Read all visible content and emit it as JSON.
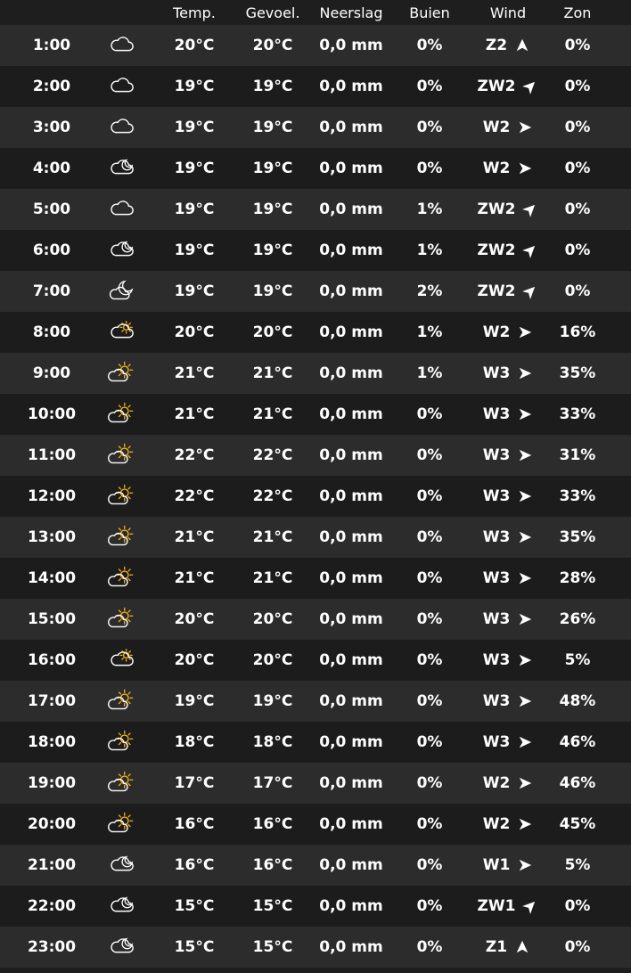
{
  "colors": {
    "background": "#1e1e1e",
    "row_odd": "#2c2c2c",
    "row_even": "#1c1c1c",
    "text": "#ffffff",
    "sun": "#f5b21a"
  },
  "headers": {
    "temp": "Temp.",
    "feel": "Gevoel.",
    "rain": "Neerslag",
    "buien": "Buien",
    "wind": "Wind",
    "zon": "Zon"
  },
  "rows": [
    {
      "time": "1:00",
      "icon": "cloud-icon",
      "temp": "20°C",
      "feel": "20°C",
      "rain": "0,0 mm",
      "buien": "0%",
      "wind": "Z2",
      "dir": "S",
      "zon": "0%"
    },
    {
      "time": "2:00",
      "icon": "cloud-icon",
      "temp": "19°C",
      "feel": "19°C",
      "rain": "0,0 mm",
      "buien": "0%",
      "wind": "ZW2",
      "dir": "SW",
      "zon": "0%"
    },
    {
      "time": "3:00",
      "icon": "cloud-icon",
      "temp": "19°C",
      "feel": "19°C",
      "rain": "0,0 mm",
      "buien": "0%",
      "wind": "W2",
      "dir": "W",
      "zon": "0%"
    },
    {
      "time": "4:00",
      "icon": "cloud-moon-icon",
      "temp": "19°C",
      "feel": "19°C",
      "rain": "0,0 mm",
      "buien": "0%",
      "wind": "W2",
      "dir": "W",
      "zon": "0%"
    },
    {
      "time": "5:00",
      "icon": "cloud-icon",
      "temp": "19°C",
      "feel": "19°C",
      "rain": "0,0 mm",
      "buien": "1%",
      "wind": "ZW2",
      "dir": "SW",
      "zon": "0%"
    },
    {
      "time": "6:00",
      "icon": "cloud-moon-icon",
      "temp": "19°C",
      "feel": "19°C",
      "rain": "0,0 mm",
      "buien": "1%",
      "wind": "ZW2",
      "dir": "SW",
      "zon": "0%"
    },
    {
      "time": "7:00",
      "icon": "moon-cloud-icon",
      "temp": "19°C",
      "feel": "19°C",
      "rain": "0,0 mm",
      "buien": "2%",
      "wind": "ZW2",
      "dir": "SW",
      "zon": "0%"
    },
    {
      "time": "8:00",
      "icon": "cloud-sun-icon",
      "temp": "20°C",
      "feel": "20°C",
      "rain": "0,0 mm",
      "buien": "1%",
      "wind": "W2",
      "dir": "W",
      "zon": "16%"
    },
    {
      "time": "9:00",
      "icon": "sun-cloud-icon",
      "temp": "21°C",
      "feel": "21°C",
      "rain": "0,0 mm",
      "buien": "1%",
      "wind": "W3",
      "dir": "W",
      "zon": "35%"
    },
    {
      "time": "10:00",
      "icon": "sun-cloud-icon",
      "temp": "21°C",
      "feel": "21°C",
      "rain": "0,0 mm",
      "buien": "0%",
      "wind": "W3",
      "dir": "W",
      "zon": "33%"
    },
    {
      "time": "11:00",
      "icon": "sun-cloud-icon",
      "temp": "22°C",
      "feel": "22°C",
      "rain": "0,0 mm",
      "buien": "0%",
      "wind": "W3",
      "dir": "W",
      "zon": "31%"
    },
    {
      "time": "12:00",
      "icon": "sun-cloud-icon",
      "temp": "22°C",
      "feel": "22°C",
      "rain": "0,0 mm",
      "buien": "0%",
      "wind": "W3",
      "dir": "W",
      "zon": "33%"
    },
    {
      "time": "13:00",
      "icon": "sun-cloud-icon",
      "temp": "21°C",
      "feel": "21°C",
      "rain": "0,0 mm",
      "buien": "0%",
      "wind": "W3",
      "dir": "W",
      "zon": "35%"
    },
    {
      "time": "14:00",
      "icon": "sun-cloud-icon",
      "temp": "21°C",
      "feel": "21°C",
      "rain": "0,0 mm",
      "buien": "0%",
      "wind": "W3",
      "dir": "W",
      "zon": "28%"
    },
    {
      "time": "15:00",
      "icon": "sun-cloud-icon",
      "temp": "20°C",
      "feel": "20°C",
      "rain": "0,0 mm",
      "buien": "0%",
      "wind": "W3",
      "dir": "W",
      "zon": "26%"
    },
    {
      "time": "16:00",
      "icon": "cloud-sun-icon",
      "temp": "20°C",
      "feel": "20°C",
      "rain": "0,0 mm",
      "buien": "0%",
      "wind": "W3",
      "dir": "W",
      "zon": "5%"
    },
    {
      "time": "17:00",
      "icon": "sun-cloud-icon",
      "temp": "19°C",
      "feel": "19°C",
      "rain": "0,0 mm",
      "buien": "0%",
      "wind": "W3",
      "dir": "W",
      "zon": "48%"
    },
    {
      "time": "18:00",
      "icon": "sun-cloud-icon",
      "temp": "18°C",
      "feel": "18°C",
      "rain": "0,0 mm",
      "buien": "0%",
      "wind": "W3",
      "dir": "W",
      "zon": "46%"
    },
    {
      "time": "19:00",
      "icon": "sun-cloud-icon",
      "temp": "17°C",
      "feel": "17°C",
      "rain": "0,0 mm",
      "buien": "0%",
      "wind": "W2",
      "dir": "W",
      "zon": "46%"
    },
    {
      "time": "20:00",
      "icon": "sun-cloud-icon",
      "temp": "16°C",
      "feel": "16°C",
      "rain": "0,0 mm",
      "buien": "0%",
      "wind": "W2",
      "dir": "W",
      "zon": "45%"
    },
    {
      "time": "21:00",
      "icon": "cloud-moon-icon",
      "temp": "16°C",
      "feel": "16°C",
      "rain": "0,0 mm",
      "buien": "0%",
      "wind": "W1",
      "dir": "W",
      "zon": "5%"
    },
    {
      "time": "22:00",
      "icon": "cloud-moon-icon",
      "temp": "15°C",
      "feel": "15°C",
      "rain": "0,0 mm",
      "buien": "0%",
      "wind": "ZW1",
      "dir": "SW",
      "zon": "0%"
    },
    {
      "time": "23:00",
      "icon": "cloud-moon-icon",
      "temp": "15°C",
      "feel": "15°C",
      "rain": "0,0 mm",
      "buien": "0%",
      "wind": "Z1",
      "dir": "S",
      "zon": "0%"
    }
  ]
}
